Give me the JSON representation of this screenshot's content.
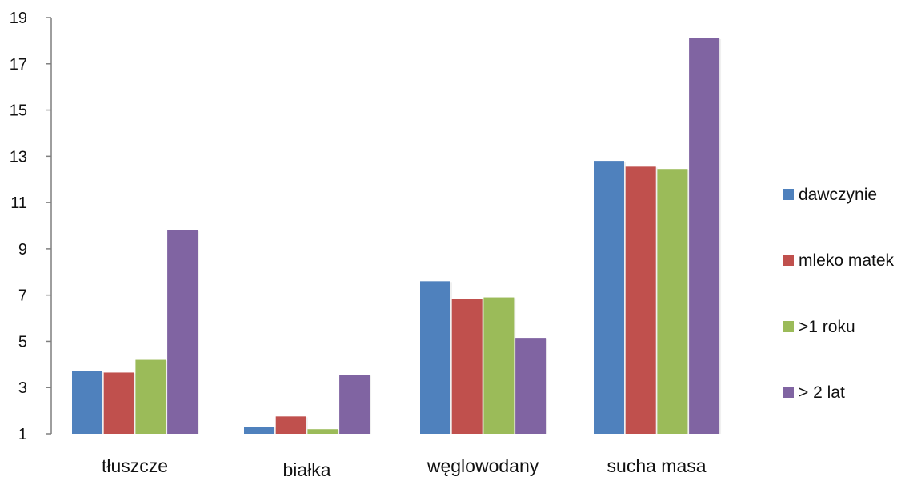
{
  "chart_data": {
    "type": "bar",
    "title": "",
    "xlabel": "",
    "ylabel": "",
    "categories": [
      "tłuszcze",
      "białka",
      "węglowodany",
      "sucha masa"
    ],
    "series": [
      {
        "name": "dawczynie",
        "color": "#4F81BD",
        "values": [
          3.7,
          1.3,
          7.6,
          12.8
        ]
      },
      {
        "name": "mleko matek",
        "color": "#C0504D",
        "values": [
          3.65,
          1.75,
          6.85,
          12.55
        ]
      },
      {
        "name": ">1 roku",
        "color": "#9BBB59",
        "values": [
          4.2,
          1.2,
          6.9,
          12.45
        ]
      },
      {
        "name": "> 2 lat",
        "color": "#8064A2",
        "values": [
          9.8,
          3.55,
          5.15,
          18.1
        ]
      }
    ],
    "ylim": [
      1,
      19
    ],
    "yticks": [
      1,
      3,
      5,
      7,
      9,
      11,
      13,
      15,
      17,
      19
    ],
    "grid": false,
    "legend_position": "right"
  }
}
